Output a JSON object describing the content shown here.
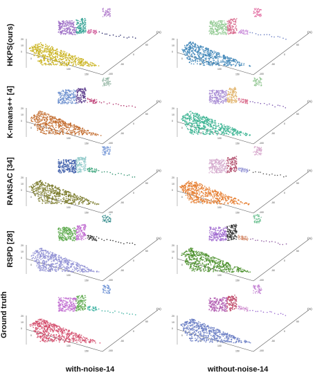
{
  "figure": {
    "rows": [
      {
        "label": "HKPS(ours)",
        "left": {
          "floor": "#c9b11b",
          "wall1": "#9b6bc4",
          "wall2": "#2a9d8f",
          "small": "#d05a9a",
          "tail": "#2b2b6b",
          "panel": "#b07acb"
        },
        "right": {
          "floor": "#3f86b8",
          "wall1": "#8fc98f",
          "wall2": "#d8698c",
          "small": "#c98bd9",
          "tail": "#6a7ec4",
          "panel": "#e26aa0"
        }
      },
      {
        "label": "K-means++ [4]",
        "left": {
          "floor": "#c26a2a",
          "wall1": "#6c8fcf",
          "wall2": "#5a3a8c",
          "small": "#c0447a",
          "tail": "#b0306a",
          "panel": "#8fb3a0"
        },
        "right": {
          "floor": "#36b28f",
          "wall1": "#a78bd4",
          "wall2": "#e0b36a",
          "small": "#d96a8b",
          "tail": "#7a55b0",
          "panel": "#8ac28a"
        }
      },
      {
        "label": "RANSAC [34]",
        "left": {
          "floor": "#7a7a2a",
          "wall1": "#3a5aa8",
          "wall2": "#8fc9c9",
          "small": "#39a57a",
          "tail": "#2b8f6b",
          "panel": "#6b8fd4"
        },
        "right": {
          "floor": "#e57a2a",
          "wall1": "#d3a8cc",
          "wall2": "#b04a6a",
          "small": "#8f8fd4",
          "tail": "#555555",
          "panel": "#d4a0c8"
        }
      },
      {
        "label": "RSPD [28]",
        "left": {
          "floor": "#8f8fd4",
          "wall1": "#5aa84a",
          "wall2": "#c06ad0",
          "small": "#2b2b2b",
          "tail": "#2b2b2b",
          "panel": "#3a8f8f"
        },
        "right": {
          "floor": "#4a8f2a",
          "wall1": "#a06ad0",
          "wall2": "#2b2b2b",
          "small": "#d48a6a",
          "tail": "#8f5aa0",
          "panel": "#6ac08f"
        }
      },
      {
        "label": "Ground truth",
        "left": {
          "floor": "#d24a6a",
          "wall1": "#c06ad0",
          "wall2": "#5aa84a",
          "small": "#3ab0a0",
          "tail": "#3ab0a0",
          "panel": "#6a8fd4"
        },
        "right": {
          "floor": "#6a7ec4",
          "wall1": "#b05ab0",
          "wall2": "#c04a6a",
          "small": "#d08fd0",
          "tail": "#9a6ad0",
          "panel": "#c07ad0"
        }
      }
    ],
    "columns": [
      "with-noise-14",
      "without-noise-14"
    ],
    "axis": {
      "z_ticks": [
        "0",
        "10",
        "20"
      ],
      "x_ticks": [
        "0",
        "50",
        "100",
        "150"
      ],
      "y_ticks": [
        "-100",
        "-50",
        "0",
        "50"
      ],
      "corner_unit": "(m)"
    }
  }
}
